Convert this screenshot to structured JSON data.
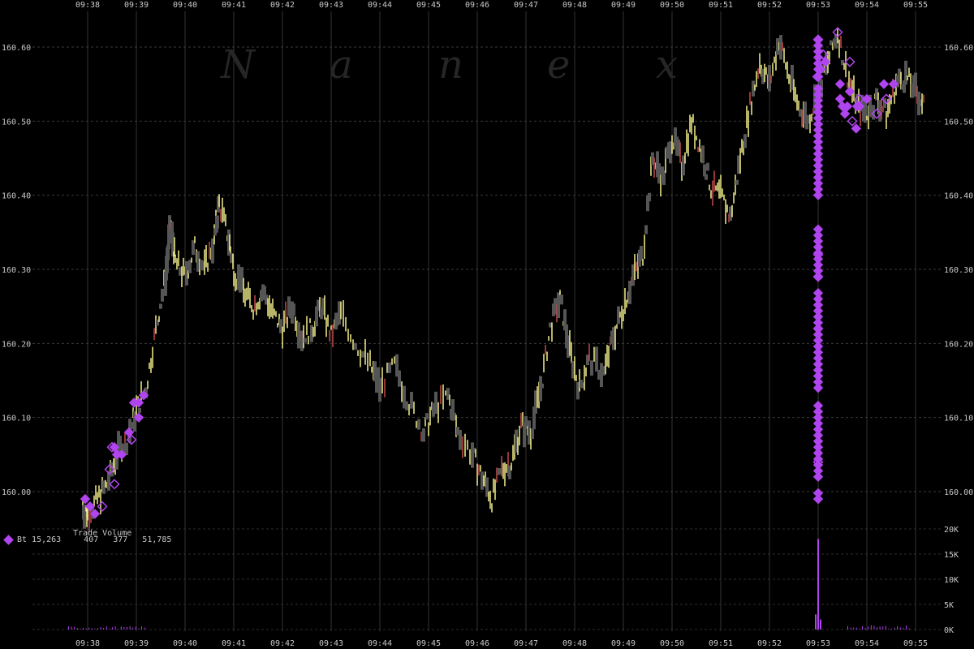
{
  "watermark": "Nanex",
  "chart_data": {
    "type": "line",
    "x_ticks": [
      "09:38",
      "09:39",
      "09:40",
      "09:41",
      "09:42",
      "09:43",
      "09:44",
      "09:45",
      "09:46",
      "09:47",
      "09:48",
      "09:49",
      "09:50",
      "09:51",
      "09:52",
      "09:53",
      "09:54",
      "09:55"
    ],
    "y_ticks": [
      "160.00",
      "160.10",
      "160.20",
      "160.30",
      "160.40",
      "160.50",
      "160.60"
    ],
    "ylim": [
      159.93,
      160.65
    ],
    "volume_ticks": [
      "0K",
      "5K",
      "10K",
      "15K",
      "20K"
    ],
    "volume_ylim": [
      0,
      20000
    ],
    "grid": true,
    "colors": {
      "price_up": "#f4f08a",
      "price_down": "#c24a4a",
      "price_flat": "#555555",
      "exchange": "#b044ee"
    },
    "price_series": [
      [
        37.9,
        159.98
      ],
      [
        38.0,
        159.97
      ],
      [
        38.2,
        159.99
      ],
      [
        38.4,
        160.01
      ],
      [
        38.6,
        160.05
      ],
      [
        38.8,
        160.07
      ],
      [
        39.0,
        160.11
      ],
      [
        39.2,
        160.14
      ],
      [
        39.4,
        160.22
      ],
      [
        39.6,
        160.29
      ],
      [
        39.7,
        160.36
      ],
      [
        39.8,
        160.31
      ],
      [
        40.0,
        160.29
      ],
      [
        40.2,
        160.33
      ],
      [
        40.4,
        160.3
      ],
      [
        40.6,
        160.34
      ],
      [
        40.7,
        160.39
      ],
      [
        40.9,
        160.34
      ],
      [
        41.0,
        160.3
      ],
      [
        41.2,
        160.27
      ],
      [
        41.4,
        160.25
      ],
      [
        41.6,
        160.27
      ],
      [
        41.8,
        160.24
      ],
      [
        42.0,
        160.22
      ],
      [
        42.2,
        160.25
      ],
      [
        42.4,
        160.21
      ],
      [
        42.6,
        160.22
      ],
      [
        42.8,
        160.25
      ],
      [
        43.0,
        160.21
      ],
      [
        43.2,
        160.24
      ],
      [
        43.5,
        160.2
      ],
      [
        43.8,
        160.17
      ],
      [
        44.0,
        160.14
      ],
      [
        44.3,
        160.17
      ],
      [
        44.6,
        160.12
      ],
      [
        44.9,
        160.08
      ],
      [
        45.1,
        160.11
      ],
      [
        45.4,
        160.13
      ],
      [
        45.6,
        160.08
      ],
      [
        45.9,
        160.05
      ],
      [
        46.1,
        160.02
      ],
      [
        46.3,
        159.99
      ],
      [
        46.5,
        160.03
      ],
      [
        46.7,
        160.04
      ],
      [
        46.9,
        160.09
      ],
      [
        47.1,
        160.08
      ],
      [
        47.3,
        160.14
      ],
      [
        47.5,
        160.22
      ],
      [
        47.7,
        160.26
      ],
      [
        47.9,
        160.19
      ],
      [
        48.1,
        160.14
      ],
      [
        48.3,
        160.18
      ],
      [
        48.6,
        160.16
      ],
      [
        48.8,
        160.21
      ],
      [
        49.0,
        160.25
      ],
      [
        49.2,
        160.29
      ],
      [
        49.4,
        160.32
      ],
      [
        49.6,
        160.45
      ],
      [
        49.8,
        160.42
      ],
      [
        50.0,
        160.48
      ],
      [
        50.2,
        160.44
      ],
      [
        50.4,
        160.5
      ],
      [
        50.6,
        160.46
      ],
      [
        50.8,
        160.41
      ],
      [
        51.0,
        160.4
      ],
      [
        51.2,
        160.37
      ],
      [
        51.4,
        160.45
      ],
      [
        51.6,
        160.52
      ],
      [
        51.8,
        160.58
      ],
      [
        52.0,
        160.55
      ],
      [
        52.2,
        160.61
      ],
      [
        52.4,
        160.56
      ],
      [
        52.6,
        160.52
      ],
      [
        52.8,
        160.5
      ],
      [
        53.0,
        160.54
      ],
      [
        53.2,
        160.58
      ],
      [
        53.4,
        160.62
      ],
      [
        53.6,
        160.56
      ],
      [
        53.8,
        160.52
      ],
      [
        54.0,
        160.51
      ],
      [
        54.2,
        160.53
      ],
      [
        54.4,
        160.51
      ],
      [
        54.6,
        160.55
      ],
      [
        54.8,
        160.56
      ],
      [
        55.0,
        160.54
      ],
      [
        55.2,
        160.52
      ]
    ],
    "filled_markers": [
      [
        37.95,
        159.99
      ],
      [
        38.05,
        159.98
      ],
      [
        38.15,
        159.97
      ],
      [
        38.55,
        160.06
      ],
      [
        38.6,
        160.05
      ],
      [
        38.7,
        160.05
      ],
      [
        38.85,
        160.08
      ],
      [
        38.95,
        160.12
      ],
      [
        39.05,
        160.12
      ],
      [
        39.15,
        160.13
      ],
      [
        39.05,
        160.1
      ],
      [
        52.98,
        160.56
      ],
      [
        53.05,
        160.57
      ],
      [
        53.15,
        160.58
      ],
      [
        53.45,
        160.55
      ],
      [
        53.45,
        160.53
      ],
      [
        53.5,
        160.52
      ],
      [
        53.55,
        160.51
      ],
      [
        53.6,
        160.52
      ],
      [
        53.65,
        160.54
      ],
      [
        53.8,
        160.52
      ],
      [
        53.85,
        160.52
      ],
      [
        54.35,
        160.55
      ],
      [
        54.55,
        160.55
      ],
      [
        53.78,
        160.49
      ],
      [
        54.0,
        160.53
      ]
    ],
    "hollow_markers": [
      [
        38.3,
        159.98
      ],
      [
        38.45,
        160.03
      ],
      [
        38.55,
        160.01
      ],
      [
        38.5,
        160.06
      ],
      [
        38.9,
        160.07
      ],
      [
        53.1,
        160.59
      ],
      [
        53.4,
        160.62
      ],
      [
        53.65,
        160.58
      ],
      [
        53.7,
        160.5
      ],
      [
        53.85,
        160.53
      ],
      [
        54.2,
        160.51
      ],
      [
        54.4,
        160.53
      ],
      [
        53.0,
        160.56
      ]
    ],
    "block_column": {
      "x": 53.0,
      "ranges": [
        [
          159.99,
          160.0
        ],
        [
          160.02,
          160.12
        ],
        [
          160.14,
          160.27
        ],
        [
          160.29,
          160.36
        ],
        [
          160.4,
          160.55
        ],
        [
          160.57,
          160.61
        ]
      ],
      "hollow_at": [
        160.04,
        160.22,
        160.29,
        160.32,
        160.61
      ]
    },
    "volume_spikes": [
      [
        52.95,
        3000
      ],
      [
        53.0,
        18000
      ],
      [
        53.05,
        2000
      ]
    ]
  },
  "volume_legend": {
    "title": "Trade Volume",
    "exchange_label": "Bt",
    "values": [
      "15,263",
      "407",
      "377",
      "51,785"
    ]
  }
}
